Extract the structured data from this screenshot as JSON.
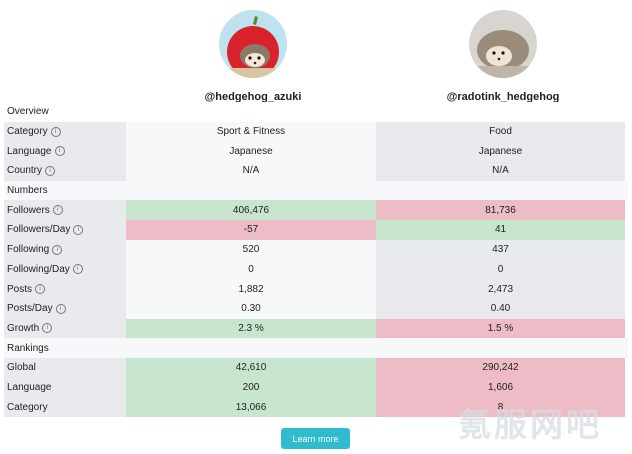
{
  "profiles": [
    {
      "handle": "@hedgehog_azuki"
    },
    {
      "handle": "@radotink_hedgehog"
    }
  ],
  "sections": {
    "overview": "Overview",
    "numbers": "Numbers",
    "rankings": "Rankings"
  },
  "rows": {
    "category": {
      "label": "Category",
      "a": "Sport & Fitness",
      "b": "Food"
    },
    "language": {
      "label": "Language",
      "a": "Japanese",
      "b": "Japanese"
    },
    "country": {
      "label": "Country",
      "a": "N/A",
      "b": "N/A"
    },
    "followers": {
      "label": "Followers",
      "a": "406,476",
      "b": "81,736"
    },
    "followers_day": {
      "label": "Followers/Day",
      "a": "-57",
      "b": "41"
    },
    "following": {
      "label": "Following",
      "a": "520",
      "b": "437"
    },
    "following_day": {
      "label": "Following/Day",
      "a": "0",
      "b": "0"
    },
    "posts": {
      "label": "Posts",
      "a": "1,882",
      "b": "2,473"
    },
    "posts_day": {
      "label": "Posts/Day",
      "a": "0.30",
      "b": "0.40"
    },
    "growth": {
      "label": "Growth",
      "a": "2.3 %",
      "b": "1.5 %"
    },
    "rank_global": {
      "label": "Global",
      "a": "42,610",
      "b": "290,242"
    },
    "rank_language": {
      "label": "Language",
      "a": "200",
      "b": "1,606"
    },
    "rank_category": {
      "label": "Category",
      "a": "13,066",
      "b": "8"
    }
  },
  "info_glyph": "i",
  "more_button": "Learn more",
  "watermark": "氪服网吧",
  "colors": {
    "better": "#c8e6cd",
    "worse": "#edbcc6",
    "button": "#2fbccf"
  },
  "icons": [
    "info-icon"
  ]
}
